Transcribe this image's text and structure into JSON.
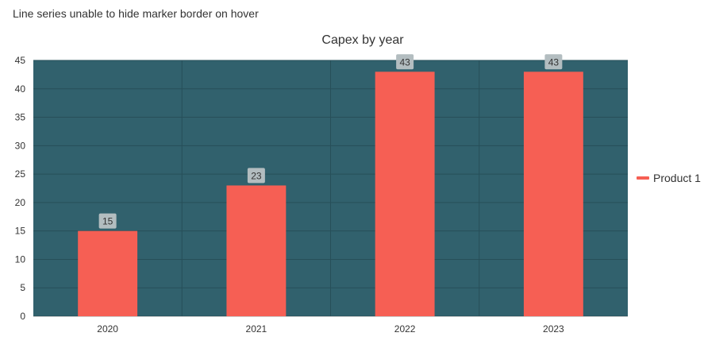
{
  "page": {
    "heading": "Line series unable to hide marker border on hover"
  },
  "chart_data": {
    "type": "bar",
    "title": "Capex by year",
    "categories": [
      "2020",
      "2021",
      "2022",
      "2023"
    ],
    "series": [
      {
        "name": "Product 1",
        "values": [
          15,
          23,
          43,
          43
        ]
      }
    ],
    "xlabel": "",
    "ylabel": "",
    "ylim": [
      0,
      45
    ],
    "yticks": [
      0,
      5,
      10,
      15,
      20,
      25,
      30,
      35,
      40,
      45
    ],
    "grid": true,
    "legend_position": "right",
    "data_labels": true,
    "colors": {
      "plot_background": "#31616d",
      "bar": "#f65f54",
      "grid": "#274f59",
      "label_box": "#b3bdc0",
      "text": "#333333"
    }
  }
}
